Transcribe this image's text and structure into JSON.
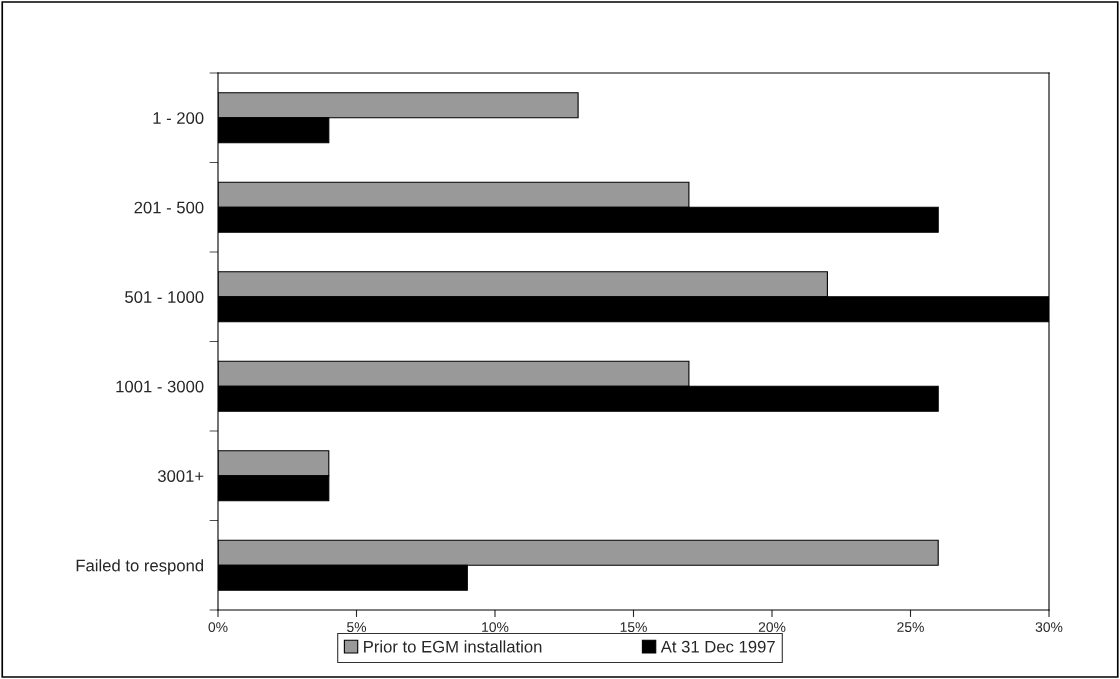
{
  "chart_data": {
    "type": "bar",
    "orientation": "horizontal",
    "categories": [
      "1 - 200",
      "201 - 500",
      "501 - 1000",
      "1001 - 3000",
      "3001+",
      "Failed to respond"
    ],
    "series": [
      {
        "name": "Prior to EGM installation",
        "color": "#999999",
        "values": [
          13,
          17,
          22,
          17,
          4,
          26
        ]
      },
      {
        "name": "At 31 Dec 1997",
        "color": "#000000",
        "values": [
          4,
          26,
          30,
          26,
          4,
          9
        ]
      }
    ],
    "xlim": [
      0,
      30
    ],
    "xticks": [
      {
        "value": 0,
        "label": "0%"
      },
      {
        "value": 5,
        "label": "5%"
      },
      {
        "value": 10,
        "label": "10%"
      },
      {
        "value": 15,
        "label": "15%"
      },
      {
        "value": 20,
        "label": "20%"
      },
      {
        "value": 25,
        "label": "25%"
      },
      {
        "value": 30,
        "label": "30%"
      }
    ],
    "grid": false,
    "legend": "bottom"
  }
}
